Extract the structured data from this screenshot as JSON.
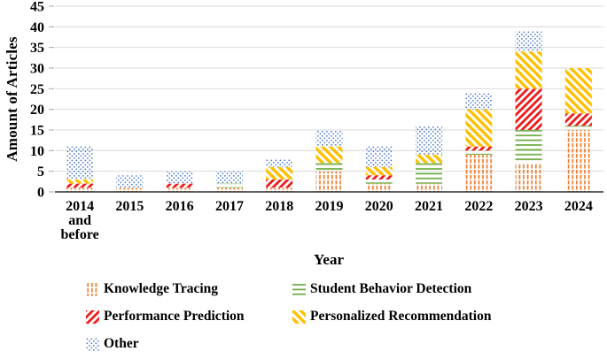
{
  "chart_data": {
    "type": "bar",
    "stacked": true,
    "title": "",
    "xlabel": "Year",
    "ylabel": "Amount of Articles",
    "ylim": [
      0,
      45
    ],
    "ytick_step": 5,
    "grid": true,
    "legend_position": "bottom",
    "categories": [
      "2014 and before",
      "2015",
      "2016",
      "2017",
      "2018",
      "2019",
      "2020",
      "2021",
      "2022",
      "2023",
      "2024"
    ],
    "series": [
      {
        "name": "Knowledge Tracing",
        "pattern": "vertical-lines-pattern",
        "color": "#ED7D31",
        "values": [
          1,
          1,
          1,
          1,
          1,
          5,
          2,
          2,
          9,
          7,
          15
        ]
      },
      {
        "name": "Student Behavior Detection",
        "pattern": "horizontal-lines-pattern",
        "color": "#70AD47",
        "values": [
          0,
          0,
          0,
          1,
          0,
          2,
          1,
          5,
          1,
          8,
          1
        ]
      },
      {
        "name": "Performance Prediction",
        "pattern": "diagonal-up-pattern",
        "color": "#ED1C1C",
        "values": [
          1,
          0,
          1,
          0,
          2,
          0,
          1,
          0,
          1,
          10,
          3
        ]
      },
      {
        "name": "Personalized Recommendation",
        "pattern": "diagonal-down-pattern",
        "color": "#FFC000",
        "values": [
          1,
          0,
          0,
          0,
          3,
          4,
          2,
          2,
          9,
          9,
          11
        ]
      },
      {
        "name": "Other",
        "pattern": "dots-pattern",
        "color": "#4472C4",
        "values": [
          8,
          3,
          3,
          3,
          2,
          4,
          5,
          7,
          4,
          5,
          0
        ]
      }
    ]
  },
  "colors": {
    "gridline": "#D9D9D9",
    "tick": "#A6A6A6",
    "axis_line": "#000000",
    "text": "#000000",
    "background": "#FFFFFF"
  }
}
